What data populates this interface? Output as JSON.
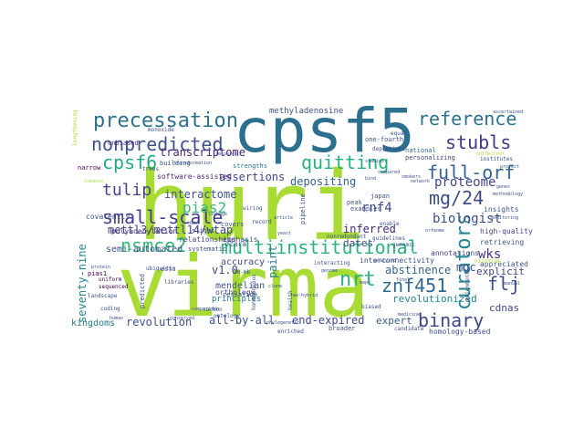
{
  "wordcloud": {
    "words": [
      {
        "text": "huri",
        "color": "#a8db34"
      },
      {
        "text": "virma",
        "color": "#a8db34"
      },
      {
        "text": "cpsf5",
        "color": "#2d6f8e"
      },
      {
        "text": "precessation",
        "color": "#2d708e"
      },
      {
        "text": "nonpredicted",
        "color": "#3b528b"
      },
      {
        "text": "reference",
        "color": "#2c728e"
      },
      {
        "text": "cpsf6",
        "color": "#26a984"
      },
      {
        "text": "quitting",
        "color": "#2ab07f"
      },
      {
        "text": "stubls",
        "color": "#443a83"
      },
      {
        "text": "full-orf",
        "color": "#32648e"
      },
      {
        "text": "tulip",
        "color": "#404688"
      },
      {
        "text": "small-scale",
        "color": "#433e85"
      },
      {
        "text": "mg/24",
        "color": "#3e4c8a"
      },
      {
        "text": "nsmce2",
        "color": "#35b779"
      },
      {
        "text": "multiinstitutional",
        "color": "#2db27d"
      },
      {
        "text": "curators",
        "color": "#25858e"
      },
      {
        "text": "znf451",
        "color": "#31688e"
      },
      {
        "text": "nrt",
        "color": "#2eb37c"
      },
      {
        "text": "flj",
        "color": "#3c4f8a"
      },
      {
        "text": "binary",
        "color": "#3e4989"
      },
      {
        "text": "proteome",
        "color": "#3f4788"
      },
      {
        "text": "transcriptome",
        "color": "#482475"
      },
      {
        "text": "interactome",
        "color": "#3b528b"
      },
      {
        "text": "pias2",
        "color": "#38b977"
      },
      {
        "text": "mettl3/mettl14/wtap",
        "color": "#414487"
      },
      {
        "text": "assertions",
        "color": "#3f4788"
      },
      {
        "text": "depositing",
        "color": "#33638d"
      },
      {
        "text": "biologist",
        "color": "#3d4d8a"
      },
      {
        "text": "rnf4",
        "color": "#404588"
      },
      {
        "text": "inferred",
        "color": "#482576"
      },
      {
        "text": "wks",
        "color": "#46307e"
      },
      {
        "text": "mgc",
        "color": "#3b518b"
      },
      {
        "text": "dates",
        "color": "#3f4889"
      },
      {
        "text": "abstinence",
        "color": "#33638d"
      },
      {
        "text": "explicit",
        "color": "#414487"
      },
      {
        "text": "revolutionized",
        "color": "#25848e"
      },
      {
        "text": "seventy-nine",
        "color": "#25858e"
      },
      {
        "text": "semi-automated",
        "color": "#3c4f8a"
      },
      {
        "text": "v1.0",
        "color": "#3e4a89"
      },
      {
        "text": "revolution",
        "color": "#3d4e8a"
      },
      {
        "text": "all-by-all",
        "color": "#3b528b"
      },
      {
        "text": "end-expired",
        "color": "#3f4889"
      },
      {
        "text": "paint",
        "color": "#287d8e"
      },
      {
        "text": "mendelian",
        "color": "#3a538b"
      },
      {
        "text": "orthology",
        "color": "#3f4788"
      },
      {
        "text": "principles",
        "color": "#2a788e"
      },
      {
        "text": "cdnas",
        "color": "#3e4989"
      },
      {
        "text": "expert",
        "color": "#33638d"
      },
      {
        "text": "kingdoms",
        "color": "#2a788e"
      },
      {
        "text": "accuracy",
        "color": "#3e4989"
      },
      {
        "text": "methyladenosine",
        "color": "#3b528b"
      },
      {
        "text": "software-assisted",
        "color": "#482576"
      },
      {
        "text": "polyadenylation",
        "color": "#46307e"
      },
      {
        "text": "relationships",
        "color": "#414487"
      },
      {
        "text": "emphasis",
        "color": "#404688"
      },
      {
        "text": "building",
        "color": "#3b528b"
      },
      {
        "text": "unbiased",
        "color": "#46307e"
      },
      {
        "text": "strengths",
        "color": "#2c728e"
      },
      {
        "text": "sequenced",
        "color": "#440154"
      },
      {
        "text": "uniform",
        "color": "#440154"
      },
      {
        "text": "pias1",
        "color": "#440154"
      },
      {
        "text": "narrow",
        "color": "#440154"
      },
      {
        "text": "high-quality",
        "color": "#414487"
      },
      {
        "text": "appreciated",
        "color": "#3b528b"
      },
      {
        "text": "insights",
        "color": "#3b528b"
      },
      {
        "text": "retrieving",
        "color": "#3b528b"
      },
      {
        "text": "homology-based",
        "color": "#3b528b"
      },
      {
        "text": "annotations",
        "color": "#414487"
      },
      {
        "text": "interconnectivity",
        "color": "#3b528b"
      },
      {
        "text": "national",
        "color": "#31688e"
      },
      {
        "text": "personalizing",
        "color": "#414487"
      },
      {
        "text": "covalently",
        "color": "#3b528b"
      },
      {
        "text": "one-fourth",
        "color": "#3b528b"
      },
      {
        "text": "japan",
        "color": "#3b528b"
      },
      {
        "text": "peak",
        "color": "#3b528b"
      },
      {
        "text": "examples",
        "color": "#3b528b"
      },
      {
        "text": "enable",
        "color": "#3b528b"
      },
      {
        "text": "candidate",
        "color": "#3b528b"
      },
      {
        "text": "enriched",
        "color": "#3b528b"
      },
      {
        "text": "broader",
        "color": "#3b528b"
      },
      {
        "text": "cessation",
        "color": "#3b528b"
      },
      {
        "text": "clara",
        "color": "#3b528b"
      },
      {
        "text": "covers",
        "color": "#3b528b"
      },
      {
        "text": "10-mb",
        "color": "#3b528b"
      },
      {
        "text": "ests",
        "color": "#3b528b"
      },
      {
        "text": "monoxide",
        "color": "#3b528b"
      },
      {
        "text": "depletions",
        "color": "#3b528b"
      },
      {
        "text": "predicted",
        "color": "#3b528b"
      },
      {
        "text": "libraries",
        "color": "#3b528b"
      },
      {
        "text": "systematic",
        "color": "#3b528b"
      },
      {
        "text": "carbon",
        "color": "#3b528b"
      },
      {
        "text": "ontology",
        "color": "#3b528b"
      },
      {
        "text": "record",
        "color": "#3b528b"
      },
      {
        "text": "wiring",
        "color": "#3b528b"
      },
      {
        "text": "pipeline",
        "color": "#3b528b"
      },
      {
        "text": "guidelines",
        "color": "#3b528b"
      },
      {
        "text": "alignments",
        "color": "#3b528b"
      },
      {
        "text": "nicotine",
        "color": "#a8db34"
      },
      {
        "text": "homogeneous",
        "color": "#3b528b"
      },
      {
        "text": "health",
        "color": "#3b528b"
      },
      {
        "text": "trees",
        "color": "#3b528b"
      },
      {
        "text": "landscape",
        "color": "#3b528b"
      },
      {
        "text": "coding",
        "color": "#3b528b"
      },
      {
        "text": "institutes",
        "color": "#3b528b"
      },
      {
        "text": "ubiquitin",
        "color": "#3b528b"
      },
      {
        "text": "interacting",
        "color": "#3b528b"
      },
      {
        "text": "slight",
        "color": "#3b528b"
      },
      {
        "text": "lengthening",
        "color": "#a8db34"
      },
      {
        "text": "nonredundant",
        "color": "#3b528b"
      },
      {
        "text": "methodology",
        "color": "#3b528b"
      },
      {
        "text": "monitoring",
        "color": "#3b528b"
      },
      {
        "text": "biased",
        "color": "#3b528b"
      },
      {
        "text": "equal",
        "color": "#3b528b"
      },
      {
        "text": "genomic",
        "color": "#3b528b"
      },
      {
        "text": "phylogenetic",
        "color": "#3b528b"
      },
      {
        "text": "comparison",
        "color": "#3b528b"
      },
      {
        "text": "ascertained",
        "color": "#3b528b"
      },
      {
        "text": "smokers",
        "color": "#3b528b"
      },
      {
        "text": "genes",
        "color": "#3b528b"
      },
      {
        "text": "article",
        "color": "#3b528b"
      },
      {
        "text": "manual",
        "color": "#3b528b"
      },
      {
        "text": "final",
        "color": "#3b528b"
      },
      {
        "text": "transformation",
        "color": "#3b528b"
      },
      {
        "text": "resource",
        "color": "#3b528b"
      },
      {
        "text": "studies",
        "color": "#3b528b"
      },
      {
        "text": "protein",
        "color": "#3b528b"
      },
      {
        "text": "human",
        "color": "#3b528b"
      },
      {
        "text": "data",
        "color": "#3b528b"
      },
      {
        "text": "analyzed",
        "color": "#3b528b"
      },
      {
        "text": "project",
        "color": "#3b528b"
      },
      {
        "text": "genome",
        "color": "#3b528b"
      },
      {
        "text": "tobacco",
        "color": "#a8db34"
      },
      {
        "text": "linkage",
        "color": "#3b528b"
      },
      {
        "text": "network",
        "color": "#3b528b"
      },
      {
        "text": "medicine",
        "color": "#3b528b"
      },
      {
        "text": "conserved",
        "color": "#3b528b"
      },
      {
        "text": "compared",
        "color": "#3b528b"
      },
      {
        "text": "bind",
        "color": "#3b528b"
      },
      {
        "text": "orfeome",
        "color": "#3b528b"
      },
      {
        "text": "collection",
        "color": "#a8db34"
      },
      {
        "text": "yeast",
        "color": "#3b528b"
      },
      {
        "text": "two-hybrid",
        "color": "#3b528b"
      },
      {
        "text": "clone",
        "color": "#3b528b"
      },
      {
        "text": "maps",
        "color": "#3b528b"
      }
    ]
  }
}
